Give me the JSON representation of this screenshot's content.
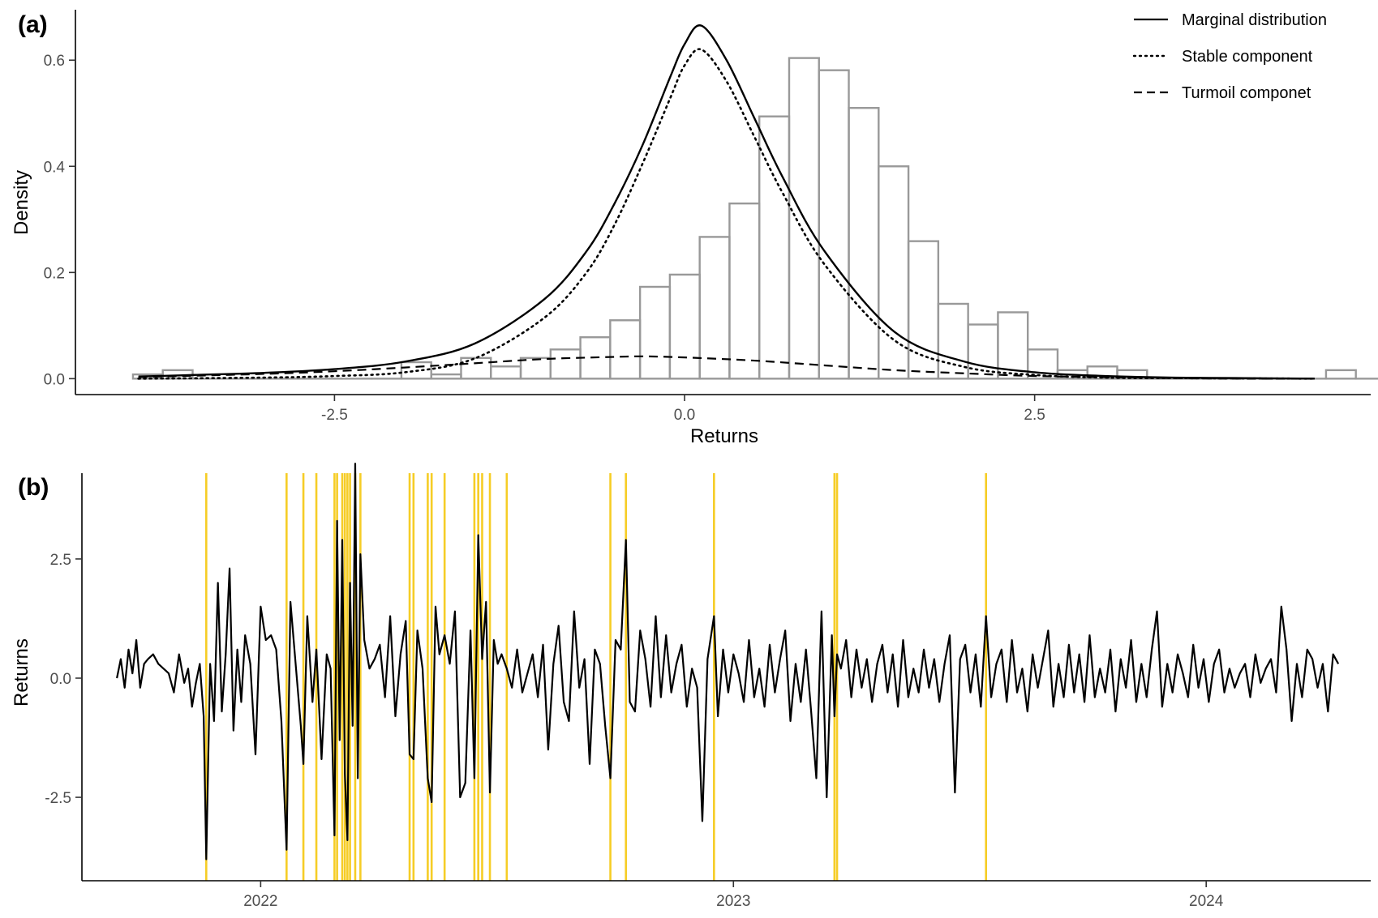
{
  "chart_data": [
    {
      "panel_label": "(a)",
      "type": "bar",
      "subtype": "histogram-with-density-curves",
      "xlabel": "Returns",
      "ylabel": "Density",
      "xlim": [
        -4.35,
        4.9
      ],
      "ylim": [
        -0.03,
        0.695
      ],
      "x_ticks": [
        -2.5,
        0.0,
        2.5
      ],
      "x_tick_labels": [
        "-2.5",
        "0.0",
        "2.5"
      ],
      "y_ticks": [
        0.0,
        0.2,
        0.4,
        0.6
      ],
      "y_tick_labels": [
        "0.0",
        "0.2",
        "0.4",
        "0.6"
      ],
      "grid": false,
      "legend_position": "top-right",
      "histogram": {
        "bin_width": 0.213,
        "bin_start": -3.939,
        "bar_color": "#999999",
        "values": [
          0.008,
          0.016,
          0.0,
          0.0,
          0.0,
          0.0,
          0.0,
          0.0,
          0.0,
          0.031,
          0.008,
          0.039,
          0.023,
          0.039,
          0.055,
          0.078,
          0.11,
          0.173,
          0.196,
          0.267,
          0.33,
          0.494,
          0.604,
          0.581,
          0.51,
          0.4,
          0.259,
          0.141,
          0.102,
          0.125,
          0.055,
          0.016,
          0.023,
          0.016,
          0.0,
          0.0,
          0.0,
          0.0,
          0.0,
          0.0,
          0.016,
          0.0,
          0.0,
          0.0,
          0.008,
          0.0,
          0.0,
          0.0,
          0.0,
          0.0,
          0.0,
          0.0,
          0.0,
          0.0,
          0.0,
          0.0,
          0.0,
          0.0,
          0.0,
          0.0,
          0.0,
          0.0,
          0.008
        ]
      },
      "curves": [
        {
          "name": "Marginal distribution",
          "style": "solid",
          "x": [
            -3.9,
            -3.5,
            -3.0,
            -2.5,
            -2.0,
            -1.5,
            -1.0,
            -0.7,
            -0.5,
            -0.3,
            -0.1,
            0.0,
            0.12,
            0.3,
            0.5,
            0.7,
            1.0,
            1.5,
            2.0,
            2.5,
            3.0,
            3.5,
            4.0,
            4.5
          ],
          "y": [
            0.004,
            0.007,
            0.011,
            0.018,
            0.032,
            0.066,
            0.15,
            0.24,
            0.33,
            0.44,
            0.57,
            0.63,
            0.665,
            0.6,
            0.49,
            0.38,
            0.24,
            0.088,
            0.032,
            0.012,
            0.005,
            0.002,
            0.001,
            0.0
          ]
        },
        {
          "name": "Stable component",
          "style": "dotted",
          "x": [
            -3.9,
            -3.0,
            -2.5,
            -2.0,
            -1.5,
            -1.0,
            -0.7,
            -0.5,
            -0.3,
            -0.1,
            0.0,
            0.12,
            0.3,
            0.5,
            0.7,
            1.0,
            1.5,
            2.0,
            2.5,
            3.0,
            3.5,
            4.5
          ],
          "y": [
            0.0,
            0.002,
            0.005,
            0.012,
            0.038,
            0.115,
            0.2,
            0.29,
            0.405,
            0.53,
            0.59,
            0.62,
            0.56,
            0.455,
            0.35,
            0.215,
            0.072,
            0.022,
            0.007,
            0.002,
            0.001,
            0.0
          ]
        },
        {
          "name": "Turmoil componet",
          "style": "dashed",
          "x": [
            -3.9,
            -3.0,
            -2.5,
            -2.0,
            -1.5,
            -1.0,
            -0.5,
            -0.3,
            0.0,
            0.5,
            1.0,
            1.5,
            2.0,
            2.5,
            3.0,
            3.5,
            4.0,
            4.5
          ],
          "y": [
            0.003,
            0.009,
            0.014,
            0.021,
            0.029,
            0.037,
            0.041,
            0.042,
            0.04,
            0.034,
            0.025,
            0.016,
            0.01,
            0.005,
            0.003,
            0.001,
            0.0,
            0.0
          ]
        }
      ]
    },
    {
      "panel_label": "(b)",
      "type": "line",
      "xlabel": "",
      "ylabel": "Returns",
      "x_is_date": true,
      "xlim": [
        "2021-08-16",
        "2024-05-07"
      ],
      "ylim": [
        -4.25,
        4.3
      ],
      "x_ticks": [
        "2022-01-01",
        "2023-01-01",
        "2024-01-01"
      ],
      "x_tick_labels": [
        "2022",
        "2023",
        "2024"
      ],
      "y_ticks": [
        -2.5,
        0.0,
        2.5
      ],
      "y_tick_labels": [
        "-2.5",
        "0.0",
        "2.5"
      ],
      "grid": false,
      "highlight_color": "#f5c400",
      "highlights": [
        "2021-11-20",
        "2022-01-21",
        "2022-02-03",
        "2022-02-13",
        "2022-02-27",
        "2022-03-01",
        "2022-03-05",
        "2022-03-07",
        "2022-03-09",
        "2022-03-11",
        "2022-03-15",
        "2022-03-19",
        "2022-04-26",
        "2022-04-29",
        "2022-05-10",
        "2022-05-13",
        "2022-05-23",
        "2022-06-15",
        "2022-06-18",
        "2022-06-21",
        "2022-06-27",
        "2022-07-10",
        "2022-09-28",
        "2022-10-10",
        "2022-12-17",
        "2023-03-20",
        "2023-03-22",
        "2023-07-15"
      ],
      "series": [
        {
          "x": [
            "2021-09-12",
            "2021-09-15",
            "2021-09-18",
            "2021-09-21",
            "2021-09-24",
            "2021-09-27",
            "2021-09-30",
            "2021-10-03",
            "2021-10-06",
            "2021-10-10",
            "2021-10-14",
            "2021-10-18",
            "2021-10-22",
            "2021-10-26",
            "2021-10-30",
            "2021-11-03",
            "2021-11-06",
            "2021-11-09",
            "2021-11-12",
            "2021-11-15",
            "2021-11-18",
            "2021-11-20",
            "2021-11-23",
            "2021-11-26",
            "2021-11-29",
            "2021-12-02",
            "2021-12-05",
            "2021-12-08",
            "2021-12-11",
            "2021-12-14",
            "2021-12-17",
            "2021-12-20",
            "2021-12-24",
            "2021-12-28",
            "2022-01-01",
            "2022-01-05",
            "2022-01-09",
            "2022-01-13",
            "2022-01-17",
            "2022-01-21",
            "2022-01-24",
            "2022-01-28",
            "2022-02-01",
            "2022-02-03",
            "2022-02-06",
            "2022-02-10",
            "2022-02-13",
            "2022-02-17",
            "2022-02-21",
            "2022-02-24",
            "2022-02-27",
            "2022-03-01",
            "2022-03-03",
            "2022-03-05",
            "2022-03-07",
            "2022-03-09",
            "2022-03-11",
            "2022-03-13",
            "2022-03-15",
            "2022-03-17",
            "2022-03-19",
            "2022-03-22",
            "2022-03-26",
            "2022-03-30",
            "2022-04-03",
            "2022-04-07",
            "2022-04-11",
            "2022-04-15",
            "2022-04-19",
            "2022-04-23",
            "2022-04-26",
            "2022-04-29",
            "2022-05-02",
            "2022-05-06",
            "2022-05-10",
            "2022-05-13",
            "2022-05-16",
            "2022-05-19",
            "2022-05-23",
            "2022-05-27",
            "2022-05-31",
            "2022-06-04",
            "2022-06-08",
            "2022-06-12",
            "2022-06-15",
            "2022-06-18",
            "2022-06-21",
            "2022-06-24",
            "2022-06-27",
            "2022-06-30",
            "2022-07-03",
            "2022-07-06",
            "2022-07-10",
            "2022-07-14",
            "2022-07-18",
            "2022-07-22",
            "2022-07-26",
            "2022-07-30",
            "2022-08-03",
            "2022-08-07",
            "2022-08-11",
            "2022-08-15",
            "2022-08-19",
            "2022-08-23",
            "2022-08-27",
            "2022-08-31",
            "2022-09-04",
            "2022-09-08",
            "2022-09-12",
            "2022-09-16",
            "2022-09-20",
            "2022-09-24",
            "2022-09-28",
            "2022-10-02",
            "2022-10-06",
            "2022-10-10",
            "2022-10-13",
            "2022-10-17",
            "2022-10-21",
            "2022-10-25",
            "2022-10-29",
            "2022-11-02",
            "2022-11-06",
            "2022-11-10",
            "2022-11-14",
            "2022-11-18",
            "2022-11-22",
            "2022-11-26",
            "2022-11-30",
            "2022-12-04",
            "2022-12-08",
            "2022-12-12",
            "2022-12-17",
            "2022-12-20",
            "2022-12-24",
            "2022-12-28",
            "2023-01-01",
            "2023-01-05",
            "2023-01-09",
            "2023-01-13",
            "2023-01-17",
            "2023-01-21",
            "2023-01-25",
            "2023-01-29",
            "2023-02-02",
            "2023-02-06",
            "2023-02-10",
            "2023-02-14",
            "2023-02-18",
            "2023-02-22",
            "2023-02-26",
            "2023-03-02",
            "2023-03-06",
            "2023-03-10",
            "2023-03-14",
            "2023-03-18",
            "2023-03-20",
            "2023-03-22",
            "2023-03-25",
            "2023-03-29",
            "2023-04-02",
            "2023-04-06",
            "2023-04-10",
            "2023-04-14",
            "2023-04-18",
            "2023-04-22",
            "2023-04-26",
            "2023-04-30",
            "2023-05-04",
            "2023-05-08",
            "2023-05-12",
            "2023-05-16",
            "2023-05-20",
            "2023-05-24",
            "2023-05-28",
            "2023-06-01",
            "2023-06-05",
            "2023-06-09",
            "2023-06-13",
            "2023-06-17",
            "2023-06-21",
            "2023-06-25",
            "2023-06-29",
            "2023-07-03",
            "2023-07-07",
            "2023-07-11",
            "2023-07-15",
            "2023-07-19",
            "2023-07-23",
            "2023-07-27",
            "2023-07-31",
            "2023-08-04",
            "2023-08-08",
            "2023-08-12",
            "2023-08-16",
            "2023-08-20",
            "2023-08-24",
            "2023-08-28",
            "2023-09-01",
            "2023-09-05",
            "2023-09-09",
            "2023-09-13",
            "2023-09-17",
            "2023-09-21",
            "2023-09-25",
            "2023-09-29",
            "2023-10-03",
            "2023-10-07",
            "2023-10-11",
            "2023-10-15",
            "2023-10-19",
            "2023-10-23",
            "2023-10-27",
            "2023-10-31",
            "2023-11-04",
            "2023-11-08",
            "2023-11-12",
            "2023-11-16",
            "2023-11-20",
            "2023-11-24",
            "2023-11-28",
            "2023-12-02",
            "2023-12-06",
            "2023-12-10",
            "2023-12-14",
            "2023-12-18",
            "2023-12-22",
            "2023-12-26",
            "2023-12-30",
            "2024-01-03",
            "2024-01-07",
            "2024-01-11",
            "2024-01-15",
            "2024-01-19",
            "2024-01-23",
            "2024-01-27",
            "2024-01-31",
            "2024-02-04",
            "2024-02-08",
            "2024-02-12",
            "2024-02-16",
            "2024-02-20",
            "2024-02-24",
            "2024-02-28",
            "2024-03-03",
            "2024-03-07",
            "2024-03-11",
            "2024-03-15",
            "2024-03-19",
            "2024-03-23",
            "2024-03-27",
            "2024-03-31",
            "2024-04-04",
            "2024-04-08",
            "2024-04-12"
          ],
          "y": [
            0.0,
            0.4,
            -0.2,
            0.6,
            0.1,
            0.8,
            -0.2,
            0.3,
            0.4,
            0.5,
            0.3,
            0.2,
            0.1,
            -0.3,
            0.5,
            -0.1,
            0.2,
            -0.6,
            -0.1,
            0.3,
            -0.8,
            -3.8,
            0.3,
            -0.9,
            2.0,
            -0.7,
            0.5,
            2.3,
            -1.1,
            0.6,
            -0.5,
            0.9,
            0.3,
            -1.6,
            1.5,
            0.8,
            0.9,
            0.6,
            -0.9,
            -3.6,
            1.6,
            0.3,
            -1.0,
            -1.8,
            1.3,
            -0.5,
            0.6,
            -1.7,
            0.5,
            0.2,
            -3.3,
            3.3,
            -1.3,
            2.9,
            -2.0,
            -3.4,
            2.0,
            -1.0,
            4.5,
            -2.1,
            2.6,
            0.8,
            0.2,
            0.4,
            0.7,
            -0.4,
            1.3,
            -0.8,
            0.5,
            1.2,
            -1.6,
            -1.7,
            1.0,
            0.2,
            -2.1,
            -2.6,
            1.5,
            0.5,
            0.9,
            0.3,
            1.4,
            -2.5,
            -2.2,
            1.0,
            -2.1,
            3.0,
            0.4,
            1.6,
            -2.4,
            0.8,
            0.3,
            0.5,
            0.2,
            -0.2,
            0.6,
            -0.3,
            0.1,
            0.5,
            -0.4,
            0.7,
            -1.5,
            0.3,
            1.1,
            -0.5,
            -0.9,
            1.4,
            -0.2,
            0.4,
            -1.8,
            0.6,
            0.3,
            -1.0,
            -2.1,
            0.8,
            0.6,
            2.9,
            -0.5,
            -0.7,
            1.0,
            0.4,
            -0.6,
            1.3,
            -0.4,
            0.9,
            -0.3,
            0.3,
            0.7,
            -0.6,
            0.2,
            -0.2,
            -3.0,
            0.4,
            1.3,
            -0.8,
            0.6,
            -0.3,
            0.5,
            0.1,
            -0.5,
            0.8,
            -0.4,
            0.2,
            -0.6,
            0.7,
            -0.3,
            0.4,
            1.0,
            -0.9,
            0.3,
            -0.5,
            0.6,
            -0.7,
            -2.1,
            1.4,
            -2.5,
            0.9,
            -0.8,
            0.5,
            0.2,
            0.8,
            -0.4,
            0.6,
            -0.2,
            0.4,
            -0.5,
            0.3,
            0.7,
            -0.3,
            0.5,
            -0.6,
            0.8,
            -0.4,
            0.2,
            -0.3,
            0.6,
            -0.2,
            0.4,
            -0.5,
            0.3,
            0.9,
            -2.4,
            0.4,
            0.7,
            -0.3,
            0.5,
            -0.6,
            1.3,
            -0.4,
            0.3,
            0.6,
            -0.5,
            0.8,
            -0.3,
            0.2,
            -0.7,
            0.5,
            -0.2,
            0.4,
            1.0,
            -0.6,
            0.3,
            -0.4,
            0.7,
            -0.3,
            0.5,
            -0.5,
            0.9,
            -0.4,
            0.2,
            -0.3,
            0.6,
            -0.7,
            0.4,
            -0.2,
            0.8,
            -0.5,
            0.3,
            -0.4,
            0.6,
            1.4,
            -0.6,
            0.3,
            -0.3,
            0.5,
            0.1,
            -0.4,
            0.7,
            -0.2,
            0.4,
            -0.5,
            0.3,
            0.6,
            -0.3,
            0.2,
            -0.2,
            0.1,
            0.3,
            -0.4,
            0.5,
            -0.1,
            0.2,
            0.4,
            -0.3,
            1.5,
            0.6,
            -0.9,
            0.3,
            -0.4,
            0.6,
            0.4,
            -0.2,
            0.3,
            -0.7,
            0.5,
            0.3
          ]
        }
      ]
    }
  ],
  "legend": {
    "items": [
      {
        "label": "Marginal distribution",
        "style": "solid"
      },
      {
        "label": "Stable component",
        "style": "dotted"
      },
      {
        "label": "Turmoil componet",
        "style": "dashed"
      }
    ]
  }
}
